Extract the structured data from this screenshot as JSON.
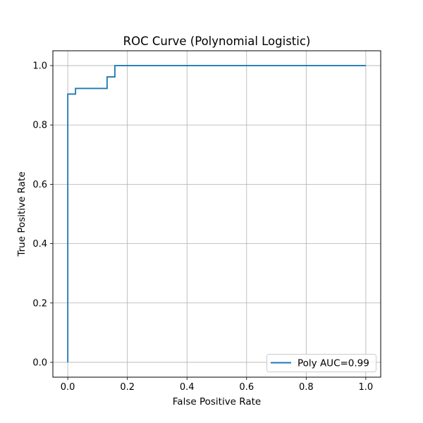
{
  "chart_data": {
    "type": "line",
    "title": "ROC Curve (Polynomial Logistic)",
    "xlabel": "False Positive Rate",
    "ylabel": "True Positive Rate",
    "xlim": [
      -0.05,
      1.05
    ],
    "ylim": [
      -0.05,
      1.05
    ],
    "xticks": [
      0.0,
      0.2,
      0.4,
      0.6,
      0.8,
      1.0
    ],
    "yticks": [
      0.0,
      0.2,
      0.4,
      0.6,
      0.8,
      1.0
    ],
    "xtick_labels": [
      "0.0",
      "0.2",
      "0.4",
      "0.6",
      "0.8",
      "1.0"
    ],
    "ytick_labels": [
      "0.0",
      "0.2",
      "0.4",
      "0.6",
      "0.8",
      "1.0"
    ],
    "grid": true,
    "legend_position": "lower-right",
    "series": [
      {
        "name": "Poly AUC=0.99",
        "color": "#1f77b4",
        "step": true,
        "x": [
          0.0,
          0.0,
          0.0,
          0.026,
          0.026,
          0.132,
          0.132,
          0.158,
          0.158,
          1.0
        ],
        "y": [
          0.0,
          0.0,
          0.904,
          0.904,
          0.923,
          0.923,
          0.962,
          0.962,
          1.0,
          1.0
        ]
      }
    ]
  }
}
